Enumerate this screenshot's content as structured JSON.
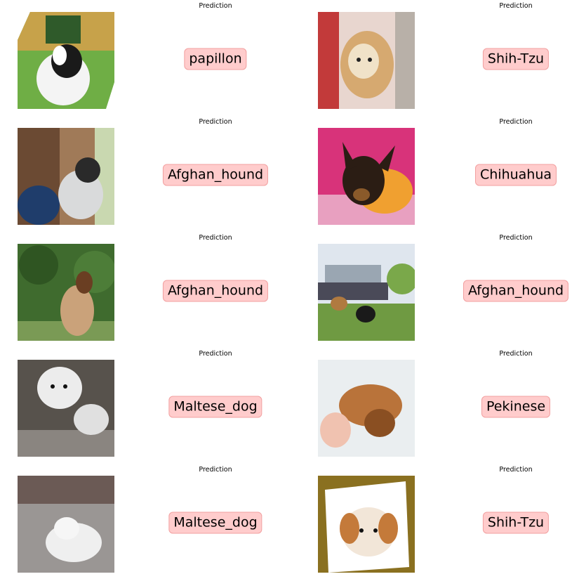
{
  "title_label": "Prediction",
  "rows": [
    {
      "left": {
        "image": "papillon-photo",
        "prediction": "papillon"
      },
      "right": {
        "image": "shih-tzu-photo",
        "prediction": "Shih-Tzu"
      }
    },
    {
      "left": {
        "image": "afghan-hound-photo",
        "prediction": "Afghan_hound"
      },
      "right": {
        "image": "chihuahua-photo",
        "prediction": "Chihuahua"
      }
    },
    {
      "left": {
        "image": "afghan-hound-photo",
        "prediction": "Afghan_hound"
      },
      "right": {
        "image": "dogs-in-park-photo",
        "prediction": "Afghan_hound"
      }
    },
    {
      "left": {
        "image": "maltese-dog-photo",
        "prediction": "Maltese_dog"
      },
      "right": {
        "image": "pekinese-photo",
        "prediction": "Pekinese"
      }
    },
    {
      "left": {
        "image": "maltese-dog-photo",
        "prediction": "Maltese_dog"
      },
      "right": {
        "image": "shih-tzu-puppy-photo",
        "prediction": "Shih-Tzu"
      }
    }
  ],
  "colors": {
    "label_bg": "#ffcccc",
    "label_border": "#f2a0a0"
  }
}
